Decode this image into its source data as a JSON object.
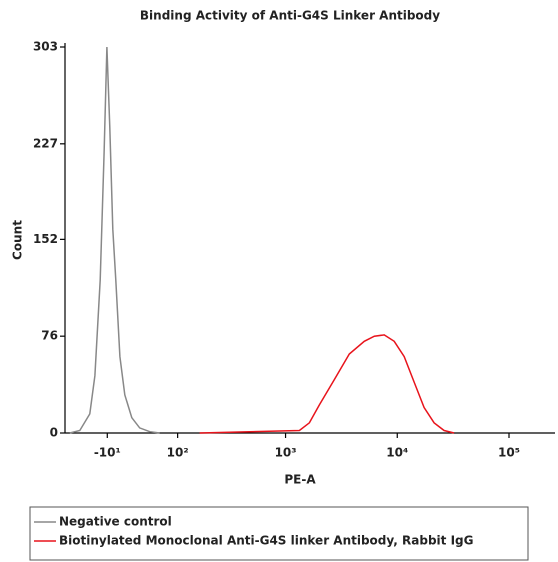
{
  "chart_data": {
    "type": "line",
    "title": "Binding Activity of Anti-G4S Linker Antibody",
    "x_label": "PE-A",
    "y_label": "Count",
    "xscale": "arcsinh",
    "xlim": [
      -74,
      258000
    ],
    "ylim": [
      0,
      303
    ],
    "xticks": [
      {
        "value": -10,
        "label": "-10¹"
      },
      {
        "value": 100,
        "label": "10²"
      },
      {
        "value": 1000,
        "label": "10³"
      },
      {
        "value": 10000,
        "label": "10⁴"
      },
      {
        "value": 100000,
        "label": "10⁵"
      }
    ],
    "yticks": [
      0,
      76,
      152,
      227,
      303
    ],
    "series": [
      {
        "name": "Negative control",
        "color": "#888888",
        "x": [
          -65,
          -48,
          -33,
          -26,
          -19,
          -14,
          -10.5,
          -6.8,
          -3.1,
          0.6,
          5.6,
          11.8,
          20.7,
          31.4,
          46.3,
          62.9
        ],
        "values": [
          0,
          2,
          15,
          45,
          120,
          220,
          303,
          240,
          160,
          120,
          60,
          30,
          12,
          4,
          1,
          0
        ]
      },
      {
        "name": "Biotinylated Monoclonal Anti-G4S linker Antibody, Rabbit IgG",
        "color": "#e8141c",
        "x": [
          165,
          474,
          1332,
          1636,
          2007,
          2736,
          3724,
          5070,
          6226,
          7646,
          9390,
          11535,
          14160,
          17400,
          21360,
          26250,
          32250
        ],
        "values": [
          0,
          1,
          2,
          8,
          22,
          42,
          62,
          72,
          76,
          77,
          72,
          60,
          40,
          20,
          8,
          2,
          0
        ]
      }
    ]
  }
}
